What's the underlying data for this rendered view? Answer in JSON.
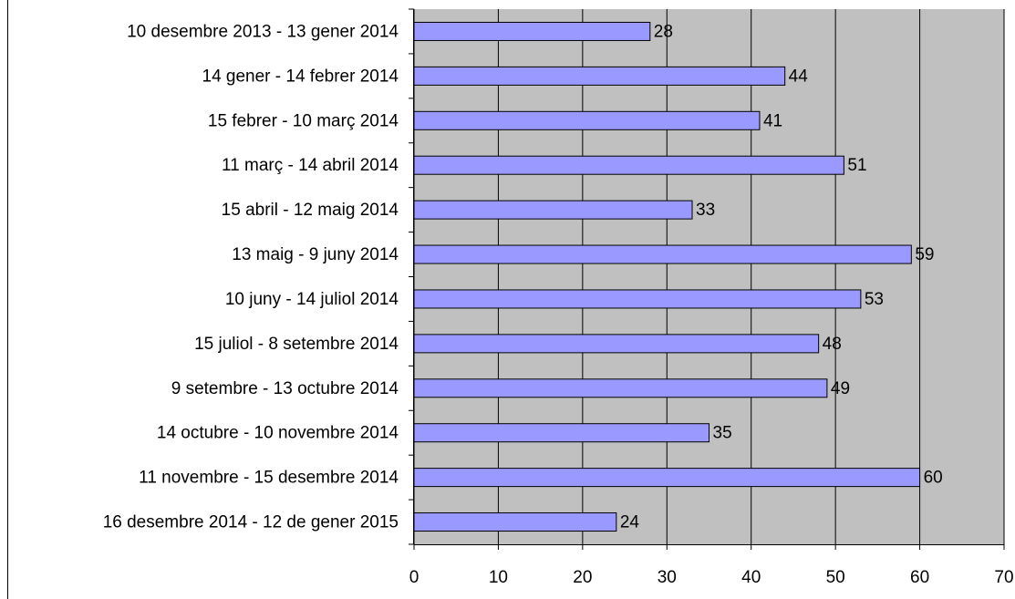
{
  "chart_data": {
    "type": "bar",
    "orientation": "horizontal",
    "categories": [
      "10 desembre 2013 - 13 gener 2014",
      "14 gener - 14 febrer 2014",
      "15 febrer - 10 març 2014",
      "11 març - 14 abril 2014",
      "15 abril - 12 maig 2014",
      "13 maig - 9 juny 2014",
      "10 juny - 14 juliol 2014",
      "15 juliol - 8 setembre 2014",
      "9 setembre - 13 octubre 2014",
      "14 octubre - 10 novembre 2014",
      "11 novembre - 15 desembre 2014",
      "16 desembre 2014 - 12 de gener 2015"
    ],
    "values": [
      28,
      44,
      41,
      51,
      33,
      59,
      53,
      48,
      49,
      35,
      60,
      24
    ],
    "color": "#9999ff",
    "plot_background": "#c0c0c0",
    "xlim": [
      0,
      70
    ],
    "xticks": [
      0,
      10,
      20,
      30,
      40,
      50,
      60,
      70
    ],
    "grid": true
  }
}
